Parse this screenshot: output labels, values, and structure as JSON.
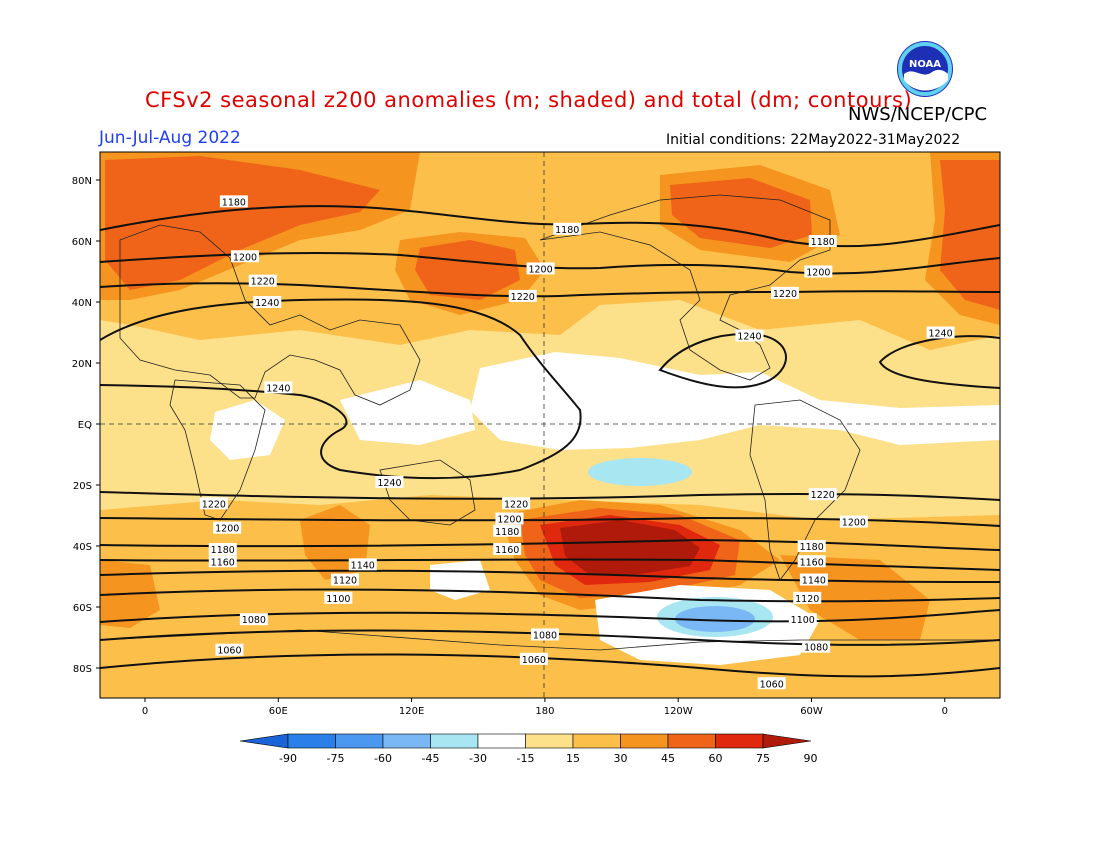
{
  "header": {
    "title": "CFSv2 seasonal z200 anomalies (m; shaded) and total (dm; contours)",
    "agency": "NWS/NCEP/CPC",
    "season": "Jun-Jul-Aug 2022",
    "initial_conditions": "Initial conditions: 22May2022-31May2022",
    "logo_text": "NOAA"
  },
  "map": {
    "lat_ticks": [
      "80N",
      "60N",
      "40N",
      "20N",
      "EQ",
      "20S",
      "40S",
      "60S",
      "80S"
    ],
    "lon_ticks": [
      "0",
      "60E",
      "120E",
      "180",
      "120W",
      "60W",
      "0"
    ],
    "contours": [
      {
        "label": "1180",
        "row": 0
      },
      {
        "label": "1200",
        "row": 1
      },
      {
        "label": "1220",
        "row": 2
      },
      {
        "label": "1240",
        "row": 3
      }
    ],
    "contour_labels": [
      {
        "text": "1180",
        "lon": 40,
        "lat": 73
      },
      {
        "text": "1180",
        "lon": 190,
        "lat": 64
      },
      {
        "text": "1180",
        "lon": 305,
        "lat": 60
      },
      {
        "text": "1200",
        "lon": 45,
        "lat": 55
      },
      {
        "text": "1200",
        "lon": 178,
        "lat": 51
      },
      {
        "text": "1200",
        "lon": 303,
        "lat": 50
      },
      {
        "text": "1220",
        "lon": 53,
        "lat": 47
      },
      {
        "text": "1220",
        "lon": 170,
        "lat": 42
      },
      {
        "text": "1220",
        "lon": 288,
        "lat": 43
      },
      {
        "text": "1240",
        "lon": 55,
        "lat": 40
      },
      {
        "text": "1240",
        "lon": 272,
        "lat": 29
      },
      {
        "text": "1240",
        "lon": 358,
        "lat": 30
      },
      {
        "text": "1240",
        "lon": 60,
        "lat": 12
      },
      {
        "text": "1240",
        "lon": 110,
        "lat": -19
      },
      {
        "text": "1220",
        "lon": 31,
        "lat": -26
      },
      {
        "text": "1220",
        "lon": 167,
        "lat": -26
      },
      {
        "text": "1220",
        "lon": 305,
        "lat": -23
      },
      {
        "text": "1200",
        "lon": 37,
        "lat": -34
      },
      {
        "text": "1200",
        "lon": 164,
        "lat": -31
      },
      {
        "text": "1200",
        "lon": 319,
        "lat": -32
      },
      {
        "text": "1180",
        "lon": 35,
        "lat": -41
      },
      {
        "text": "1180",
        "lon": 163,
        "lat": -35
      },
      {
        "text": "1180",
        "lon": 300,
        "lat": -40
      },
      {
        "text": "1160",
        "lon": 35,
        "lat": -45
      },
      {
        "text": "1160",
        "lon": 163,
        "lat": -41
      },
      {
        "text": "1160",
        "lon": 300,
        "lat": -45
      },
      {
        "text": "1140",
        "lon": 98,
        "lat": -46
      },
      {
        "text": "1140",
        "lon": 301,
        "lat": -51
      },
      {
        "text": "1120",
        "lon": 90,
        "lat": -51
      },
      {
        "text": "1120",
        "lon": 298,
        "lat": -57
      },
      {
        "text": "1100",
        "lon": 87,
        "lat": -57
      },
      {
        "text": "1100",
        "lon": 296,
        "lat": -64
      },
      {
        "text": "1080",
        "lon": 49,
        "lat": -64
      },
      {
        "text": "1080",
        "lon": 180,
        "lat": -69
      },
      {
        "text": "1080",
        "lon": 302,
        "lat": -73
      },
      {
        "text": "1060",
        "lon": 38,
        "lat": -74
      },
      {
        "text": "1060",
        "lon": 175,
        "lat": -77
      },
      {
        "text": "1060",
        "lon": 282,
        "lat": -85
      }
    ]
  },
  "colorbar": {
    "labels": [
      "-90",
      "-75",
      "-60",
      "-45",
      "-30",
      "-15",
      "15",
      "30",
      "45",
      "60",
      "75",
      "90"
    ],
    "colors": [
      "#1a64d8",
      "#2a80e8",
      "#4a98f0",
      "#7ab8f5",
      "#a8e6f2",
      "#ffffff",
      "#fde08a",
      "#fcc04a",
      "#f5941e",
      "#f0641a",
      "#e0280e",
      "#b01a0a"
    ]
  }
}
